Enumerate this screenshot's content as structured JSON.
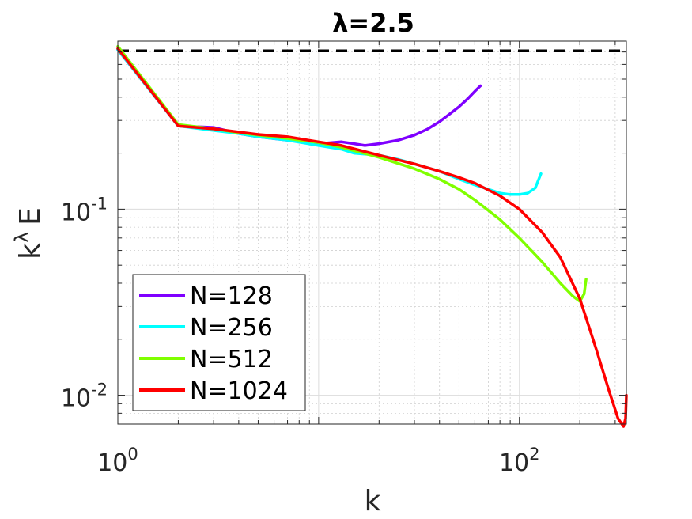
{
  "chart_data": {
    "type": "line",
    "title": "λ=2.5",
    "xlabel": "k",
    "ylabel": "k^λ E",
    "ylabel_base": "k",
    "ylabel_exp": "λ",
    "ylabel_tail": "E",
    "xscale": "log",
    "yscale": "log",
    "xlim": [
      1,
      341
    ],
    "ylim": [
      0.007,
      0.8
    ],
    "grid": true,
    "legend_position": "bottom-left",
    "x_ticks": [
      {
        "base": "10",
        "exp": "0",
        "value": 1
      },
      {
        "base": "10",
        "exp": "2",
        "value": 100
      }
    ],
    "y_ticks": [
      {
        "base": "10",
        "exp": "-1",
        "value": 0.1
      },
      {
        "base": "10",
        "exp": "-2",
        "value": 0.01
      }
    ],
    "reference_line": {
      "y": 0.71,
      "style": "dashed",
      "color": "#000000"
    },
    "series": [
      {
        "name": "N=128",
        "color": "#7F00FF",
        "x": [
          1,
          2,
          3,
          4,
          5,
          7,
          10,
          13,
          15,
          17,
          20,
          25,
          30,
          35,
          40,
          45,
          50,
          55,
          60,
          64
        ],
        "y": [
          0.72,
          0.28,
          0.275,
          0.255,
          0.245,
          0.235,
          0.225,
          0.23,
          0.225,
          0.22,
          0.225,
          0.235,
          0.25,
          0.27,
          0.295,
          0.325,
          0.355,
          0.39,
          0.43,
          0.46
        ]
      },
      {
        "name": "N=256",
        "color": "#00FFFF",
        "x": [
          1,
          2,
          3,
          4,
          5,
          7,
          10,
          13,
          15,
          20,
          25,
          30,
          40,
          50,
          60,
          70,
          80,
          90,
          100,
          110,
          120,
          128
        ],
        "y": [
          0.72,
          0.28,
          0.265,
          0.255,
          0.245,
          0.235,
          0.22,
          0.21,
          0.2,
          0.195,
          0.185,
          0.175,
          0.16,
          0.145,
          0.135,
          0.128,
          0.122,
          0.12,
          0.12,
          0.122,
          0.13,
          0.155
        ]
      },
      {
        "name": "N=512",
        "color": "#80FF00",
        "x": [
          1,
          2,
          3,
          4,
          5,
          7,
          10,
          13,
          20,
          30,
          40,
          50,
          60,
          80,
          100,
          130,
          160,
          185,
          200,
          210,
          215
        ],
        "y": [
          0.75,
          0.285,
          0.27,
          0.258,
          0.25,
          0.24,
          0.228,
          0.215,
          0.19,
          0.165,
          0.145,
          0.128,
          0.112,
          0.088,
          0.07,
          0.052,
          0.04,
          0.034,
          0.032,
          0.035,
          0.042
        ]
      },
      {
        "name": "N=1024",
        "color": "#FF0000",
        "x": [
          1,
          2,
          3,
          4,
          5,
          7,
          10,
          13,
          20,
          30,
          40,
          50,
          60,
          80,
          100,
          130,
          160,
          200,
          240,
          280,
          310,
          330,
          338,
          341
        ],
        "y": [
          0.73,
          0.28,
          0.27,
          0.26,
          0.252,
          0.245,
          0.23,
          0.22,
          0.195,
          0.175,
          0.16,
          0.148,
          0.138,
          0.118,
          0.1,
          0.075,
          0.055,
          0.033,
          0.018,
          0.0105,
          0.0075,
          0.0068,
          0.0075,
          0.01
        ]
      }
    ]
  }
}
